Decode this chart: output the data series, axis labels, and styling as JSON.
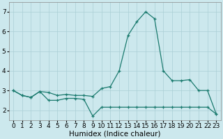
{
  "xlabel": "Humidex (Indice chaleur)",
  "bg_color": "#cce8ed",
  "grid_color": "#aacfd5",
  "line_color": "#1a7a6e",
  "x": [
    0,
    1,
    2,
    3,
    4,
    5,
    6,
    7,
    8,
    9,
    10,
    11,
    12,
    13,
    14,
    15,
    16,
    17,
    18,
    19,
    20,
    21,
    22,
    23
  ],
  "line1_y": [
    3.0,
    2.75,
    2.65,
    2.95,
    2.9,
    2.75,
    2.8,
    2.75,
    2.75,
    2.7,
    3.1,
    3.2,
    4.0,
    5.8,
    6.5,
    7.0,
    6.65,
    4.0,
    3.5,
    3.5,
    3.55,
    3.0,
    3.0,
    1.8
  ],
  "line2_y": [
    3.0,
    2.75,
    2.65,
    2.95,
    2.5,
    2.5,
    2.6,
    2.6,
    2.55,
    1.7,
    2.15,
    2.15,
    2.15,
    2.15,
    2.15,
    2.15,
    2.15,
    2.15,
    2.15,
    2.15,
    2.15,
    2.15,
    2.15,
    1.8
  ],
  "ylim": [
    1.5,
    7.5
  ],
  "xlim": [
    -0.5,
    23.5
  ],
  "yticks": [
    2,
    3,
    4,
    5,
    6,
    7
  ],
  "xticks": [
    0,
    1,
    2,
    3,
    4,
    5,
    6,
    7,
    8,
    9,
    10,
    11,
    12,
    13,
    14,
    15,
    16,
    17,
    18,
    19,
    20,
    21,
    22,
    23
  ],
  "tick_fontsize": 6.5,
  "label_fontsize": 7.5,
  "linewidth": 0.9,
  "markersize": 3.0,
  "marker": "+"
}
